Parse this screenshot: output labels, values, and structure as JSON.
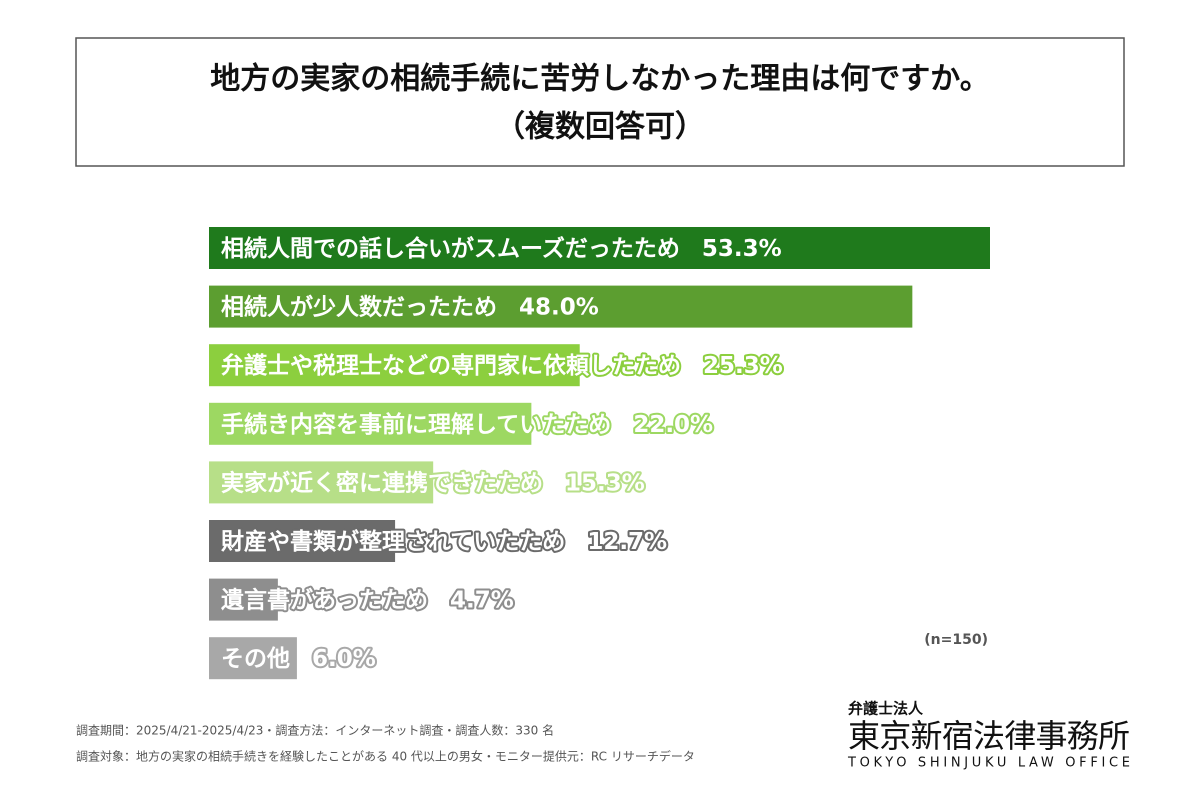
{
  "chart_data": {
    "type": "hbar",
    "title": "地方の実家の相続手続に苦労しなかった理由は何ですか。",
    "subtitle": "（複数回答可）",
    "categories": [
      "相続人間での話し合いがスムーズだったため",
      "相続人が少人数だったため",
      "弁護士や税理士などの専門家に依頼したため",
      "手続き内容を事前に理解していたため",
      "実家が近く密に連携できたため",
      "財産や書類が整理されていたため",
      "遺言書があったため",
      "その他"
    ],
    "values": [
      53.3,
      48.0,
      25.3,
      22.0,
      15.3,
      12.7,
      4.7,
      6.0
    ],
    "value_labels": [
      "53.3%",
      "48.0%",
      "25.3%",
      "22.0%",
      "15.3%",
      "12.7%",
      "4.7%",
      "6.0%"
    ],
    "colors": [
      "#1f7a1c",
      "#5c9e30",
      "#8ccf3e",
      "#9dd862",
      "#b7df88",
      "#6b6b6b",
      "#8e8e8e",
      "#a8a8a8"
    ],
    "note": "(n=150)"
  },
  "footer": {
    "lines": [
      "調査期間：2025/4/21-2025/4/23・調査方法：インターネット調査・調査人数：330 名",
      "調査対象：地方の実家の相続手続きを経験したことがある 40 代以上の男女・モニター提供元：RC リサーチデータ"
    ],
    "logo_small": "弁護士法人",
    "logo_main": "東京新宿法律事務所",
    "logo_en": "TOKYO SHINJUKU LAW OFFICE"
  }
}
